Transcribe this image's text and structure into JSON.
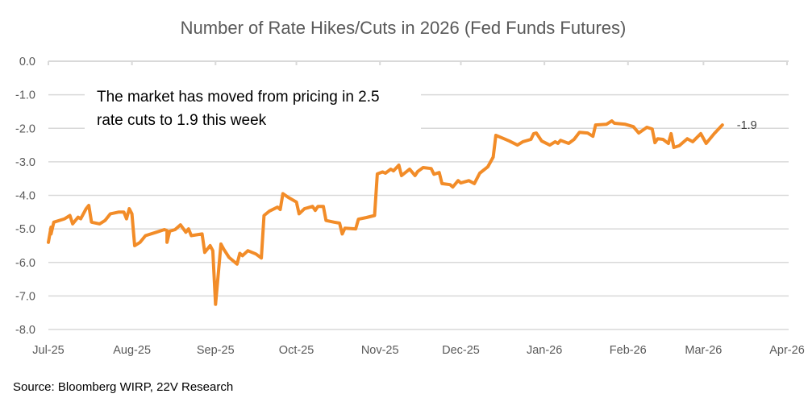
{
  "chart_data": {
    "type": "line",
    "title": "Number of Rate Hikes/Cuts in 2026 (Fed Funds Futures)",
    "xlabel": "",
    "ylabel": "",
    "x_axis": {
      "type": "date",
      "range": [
        "2025-07-01",
        "2026-04-01"
      ],
      "tick_labels": [
        "Jul-25",
        "Aug-25",
        "Sep-25",
        "Oct-25",
        "Nov-25",
        "Dec-25",
        "Jan-26",
        "Feb-26",
        "Mar-26",
        "Apr-26"
      ],
      "tick_dates": [
        "2025-07-01",
        "2025-08-01",
        "2025-09-01",
        "2025-10-01",
        "2025-11-01",
        "2025-12-01",
        "2026-01-01",
        "2026-02-01",
        "2026-03-01",
        "2026-04-01"
      ],
      "position": "top (crosses at 0)"
    },
    "y_axis": {
      "range": [
        -8.0,
        0.0
      ],
      "tick_labels": [
        "0.0",
        "-1.0",
        "-2.0",
        "-3.0",
        "-4.0",
        "-5.0",
        "-6.0",
        "-7.0",
        "-8.0"
      ],
      "tick_values": [
        0,
        -1,
        -2,
        -3,
        -4,
        -5,
        -6,
        -7,
        -8
      ]
    },
    "grid": true,
    "legend": "none",
    "series": [
      {
        "name": "Number of Rate Hikes/Cuts in 2026",
        "color": "#F28C28",
        "points": [
          [
            "2025-07-01",
            -5.4
          ],
          [
            "2025-07-02",
            -4.95
          ],
          [
            "2025-07-02",
            -5.15
          ],
          [
            "2025-07-03",
            -4.8
          ],
          [
            "2025-07-07",
            -4.7
          ],
          [
            "2025-07-09",
            -4.6
          ],
          [
            "2025-07-10",
            -4.85
          ],
          [
            "2025-07-12",
            -4.65
          ],
          [
            "2025-07-13",
            -4.7
          ],
          [
            "2025-07-15",
            -4.4
          ],
          [
            "2025-07-16",
            -4.3
          ],
          [
            "2025-07-17",
            -4.8
          ],
          [
            "2025-07-20",
            -4.85
          ],
          [
            "2025-07-22",
            -4.75
          ],
          [
            "2025-07-24",
            -4.55
          ],
          [
            "2025-07-27",
            -4.5
          ],
          [
            "2025-07-29",
            -4.5
          ],
          [
            "2025-07-30",
            -4.7
          ],
          [
            "2025-07-31",
            -4.4
          ],
          [
            "2025-08-01",
            -4.55
          ],
          [
            "2025-08-02",
            -5.5
          ],
          [
            "2025-08-04",
            -5.4
          ],
          [
            "2025-08-06",
            -5.2
          ],
          [
            "2025-08-10",
            -5.1
          ],
          [
            "2025-08-13",
            -5.02
          ],
          [
            "2025-08-14",
            -5.05
          ],
          [
            "2025-08-14",
            -5.4
          ],
          [
            "2025-08-15",
            -5.07
          ],
          [
            "2025-08-17",
            -5.02
          ],
          [
            "2025-08-19",
            -4.88
          ],
          [
            "2025-08-21",
            -5.1
          ],
          [
            "2025-08-22",
            -5.0
          ],
          [
            "2025-08-23",
            -5.2
          ],
          [
            "2025-08-27",
            -5.15
          ],
          [
            "2025-08-28",
            -5.7
          ],
          [
            "2025-08-30",
            -5.5
          ],
          [
            "2025-08-31",
            -5.65
          ],
          [
            "2025-09-01",
            -7.25
          ],
          [
            "2025-09-03",
            -5.45
          ],
          [
            "2025-09-04",
            -5.6
          ],
          [
            "2025-09-06",
            -5.85
          ],
          [
            "2025-09-09",
            -6.05
          ],
          [
            "2025-09-10",
            -5.73
          ],
          [
            "2025-09-11",
            -5.8
          ],
          [
            "2025-09-13",
            -5.65
          ],
          [
            "2025-09-16",
            -5.75
          ],
          [
            "2025-09-18",
            -5.87
          ],
          [
            "2025-09-19",
            -4.6
          ],
          [
            "2025-09-21",
            -4.47
          ],
          [
            "2025-09-24",
            -4.35
          ],
          [
            "2025-09-25",
            -4.42
          ],
          [
            "2025-09-26",
            -3.95
          ],
          [
            "2025-09-28",
            -4.06
          ],
          [
            "2025-10-01",
            -4.2
          ],
          [
            "2025-10-02",
            -4.55
          ],
          [
            "2025-10-04",
            -4.4
          ],
          [
            "2025-10-07",
            -4.33
          ],
          [
            "2025-10-08",
            -4.45
          ],
          [
            "2025-10-09",
            -4.33
          ],
          [
            "2025-10-11",
            -4.33
          ],
          [
            "2025-10-12",
            -4.75
          ],
          [
            "2025-10-15",
            -4.8
          ],
          [
            "2025-10-17",
            -4.83
          ],
          [
            "2025-10-18",
            -5.15
          ],
          [
            "2025-10-19",
            -4.98
          ],
          [
            "2025-10-23",
            -5.0
          ],
          [
            "2025-10-24",
            -4.71
          ],
          [
            "2025-10-27",
            -4.66
          ],
          [
            "2025-10-30",
            -4.6
          ],
          [
            "2025-10-31",
            -3.36
          ],
          [
            "2025-11-02",
            -3.3
          ],
          [
            "2025-11-03",
            -3.34
          ],
          [
            "2025-11-05",
            -3.22
          ],
          [
            "2025-11-06",
            -3.27
          ],
          [
            "2025-11-08",
            -3.1
          ],
          [
            "2025-11-09",
            -3.41
          ],
          [
            "2025-11-12",
            -3.22
          ],
          [
            "2025-11-14",
            -3.41
          ],
          [
            "2025-11-15",
            -3.29
          ],
          [
            "2025-11-17",
            -3.17
          ],
          [
            "2025-11-20",
            -3.2
          ],
          [
            "2025-11-21",
            -3.37
          ],
          [
            "2025-11-23",
            -3.32
          ],
          [
            "2025-11-24",
            -3.65
          ],
          [
            "2025-11-27",
            -3.68
          ],
          [
            "2025-11-28",
            -3.75
          ],
          [
            "2025-11-30",
            -3.56
          ],
          [
            "2025-12-01",
            -3.63
          ],
          [
            "2025-12-04",
            -3.56
          ],
          [
            "2025-12-06",
            -3.65
          ],
          [
            "2025-12-08",
            -3.34
          ],
          [
            "2025-12-11",
            -3.15
          ],
          [
            "2025-12-13",
            -2.86
          ],
          [
            "2025-12-14",
            -2.21
          ],
          [
            "2025-12-17",
            -2.31
          ],
          [
            "2025-12-19",
            -2.38
          ],
          [
            "2025-12-22",
            -2.5
          ],
          [
            "2025-12-24",
            -2.4
          ],
          [
            "2025-12-27",
            -2.33
          ],
          [
            "2025-12-28",
            -2.16
          ],
          [
            "2025-12-29",
            -2.14
          ],
          [
            "2025-12-31",
            -2.38
          ],
          [
            "2026-01-03",
            -2.5
          ],
          [
            "2026-01-05",
            -2.4
          ],
          [
            "2026-01-06",
            -2.45
          ],
          [
            "2026-01-07",
            -2.36
          ],
          [
            "2026-01-10",
            -2.45
          ],
          [
            "2026-01-12",
            -2.33
          ],
          [
            "2026-01-14",
            -2.12
          ],
          [
            "2026-01-17",
            -2.14
          ],
          [
            "2026-01-19",
            -2.24
          ],
          [
            "2026-01-20",
            -1.9
          ],
          [
            "2026-01-24",
            -1.88
          ],
          [
            "2026-01-26",
            -1.78
          ],
          [
            "2026-01-27",
            -1.85
          ],
          [
            "2026-01-31",
            -1.88
          ],
          [
            "2026-02-03",
            -1.95
          ],
          [
            "2026-02-05",
            -2.14
          ],
          [
            "2026-02-08",
            -1.97
          ],
          [
            "2026-02-10",
            -2.02
          ],
          [
            "2026-02-11",
            -2.43
          ],
          [
            "2026-02-12",
            -2.31
          ],
          [
            "2026-02-14",
            -2.33
          ],
          [
            "2026-02-16",
            -2.45
          ],
          [
            "2026-02-17",
            -2.16
          ],
          [
            "2026-02-18",
            -2.57
          ],
          [
            "2026-02-20",
            -2.52
          ],
          [
            "2026-02-23",
            -2.31
          ],
          [
            "2026-02-25",
            -2.4
          ],
          [
            "2026-02-28",
            -2.16
          ],
          [
            "2026-03-02",
            -2.45
          ],
          [
            "2026-03-05",
            -2.16
          ],
          [
            "2026-03-08",
            -1.9
          ]
        ],
        "end_label": "-1.9"
      }
    ],
    "annotations": [
      {
        "text_lines": [
          "The market has moved from pricing in 2.5",
          "rate cuts to 1.9 this week"
        ],
        "location": "upper-left inside plot"
      }
    ],
    "source": "Source: Bloomberg WIRP, 22V Research"
  }
}
